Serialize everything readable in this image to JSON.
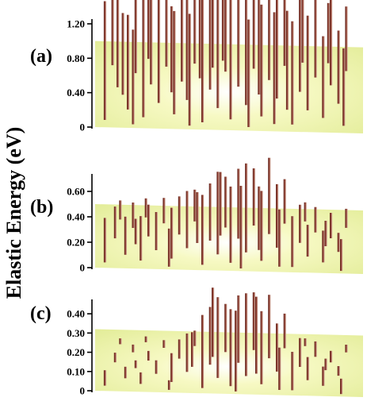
{
  "chart_data": {
    "type": "bar",
    "ylabel": "Elastic Energy (eV)",
    "colors": {
      "plane_light": "#fbfcc8",
      "plane_dark": "#e6ef9c",
      "spike_dark": "#7a2a22",
      "spike_light": "#c9a89a",
      "axis": "#000000"
    },
    "panels": [
      {
        "label": "(a)",
        "ylim": [
          0,
          1.2
        ],
        "yticks": [
          "1.20",
          "0.80",
          "0.40",
          "0"
        ],
        "ytick_values": [
          1.2,
          0.8,
          0.4,
          0
        ],
        "plane_level": 1.0,
        "spikes": [
          {
            "i": 0.02,
            "j": 0.1,
            "v": 1.38
          },
          {
            "i": 0.07,
            "j": 0.55,
            "v": 1.3
          },
          {
            "i": 0.11,
            "j": 0.25,
            "v": 1.1
          },
          {
            "i": 0.14,
            "j": 0.75,
            "v": 1.15
          },
          {
            "i": 0.17,
            "j": 0.15,
            "v": 1.4
          },
          {
            "i": 0.2,
            "j": 0.6,
            "v": 1.25
          },
          {
            "i": 0.23,
            "j": 0.35,
            "v": 1.45
          },
          {
            "i": 0.26,
            "j": 0.85,
            "v": 1.05
          },
          {
            "i": 0.29,
            "j": 0.2,
            "v": 1.2
          },
          {
            "i": 0.32,
            "j": 0.65,
            "v": 1.3
          },
          {
            "i": 0.34,
            "j": 0.4,
            "v": 1.5
          },
          {
            "i": 0.37,
            "j": 0.9,
            "v": 1.1
          },
          {
            "i": 0.4,
            "j": 0.1,
            "v": 1.6
          },
          {
            "i": 0.43,
            "j": 0.55,
            "v": 1.4
          },
          {
            "i": 0.46,
            "j": 0.3,
            "v": 1.7
          },
          {
            "i": 0.49,
            "j": 0.8,
            "v": 1.55
          },
          {
            "i": 0.51,
            "j": 0.15,
            "v": 1.85
          },
          {
            "i": 0.54,
            "j": 0.6,
            "v": 1.35
          },
          {
            "i": 0.57,
            "j": 0.35,
            "v": 1.5
          },
          {
            "i": 0.6,
            "j": 0.85,
            "v": 1.2
          },
          {
            "i": 0.63,
            "j": 0.2,
            "v": 1.3
          },
          {
            "i": 0.66,
            "j": 0.7,
            "v": 1.45
          },
          {
            "i": 0.69,
            "j": 0.45,
            "v": 1.25
          },
          {
            "i": 0.72,
            "j": 0.9,
            "v": 1.15
          },
          {
            "i": 0.75,
            "j": 0.1,
            "v": 1.2
          },
          {
            "i": 0.78,
            "j": 0.55,
            "v": 1.35
          },
          {
            "i": 0.81,
            "j": 0.3,
            "v": 1.1
          },
          {
            "i": 0.84,
            "j": 0.75,
            "v": 1.0
          },
          {
            "i": 0.87,
            "j": 0.2,
            "v": 0.95
          },
          {
            "i": 0.9,
            "j": 0.65,
            "v": 1.05
          },
          {
            "i": 0.93,
            "j": 0.4,
            "v": 0.85
          },
          {
            "i": 0.96,
            "j": 0.85,
            "v": 0.75
          },
          {
            "i": 0.05,
            "j": 0.85,
            "v": 0.9
          },
          {
            "i": 0.09,
            "j": 0.45,
            "v": 0.95
          },
          {
            "i": 0.19,
            "j": 0.95,
            "v": 0.8
          },
          {
            "i": 0.28,
            "j": 0.5,
            "v": 1.0
          },
          {
            "i": 0.39,
            "j": 0.7,
            "v": 0.95
          },
          {
            "i": 0.48,
            "j": 0.95,
            "v": 1.1
          },
          {
            "i": 0.58,
            "j": 0.05,
            "v": 1.25
          },
          {
            "i": 0.68,
            "j": 0.1,
            "v": 1.3
          },
          {
            "i": 0.79,
            "j": 0.95,
            "v": 0.85
          },
          {
            "i": 0.89,
            "j": 0.95,
            "v": 0.7
          },
          {
            "i": 0.95,
            "j": 0.1,
            "v": 0.9
          },
          {
            "i": 0.13,
            "j": 0.05,
            "v": 1.1
          },
          {
            "i": 0.35,
            "j": 0.05,
            "v": 1.3
          },
          {
            "i": 0.44,
            "j": 0.85,
            "v": 1.2
          },
          {
            "i": 0.62,
            "j": 0.5,
            "v": 1.4
          },
          {
            "i": 0.73,
            "j": 0.3,
            "v": 1.15
          }
        ]
      },
      {
        "label": "(b)",
        "ylim": [
          0,
          0.7
        ],
        "yticks": [
          "0.60",
          "0.40",
          "0.20",
          "0"
        ],
        "ytick_values": [
          0.6,
          0.4,
          0.2,
          0
        ],
        "plane_level": 0.5,
        "spikes": [
          {
            "i": 0.02,
            "j": 0.1,
            "v": 0.35
          },
          {
            "i": 0.06,
            "j": 0.55,
            "v": 0.25
          },
          {
            "i": 0.1,
            "j": 0.25,
            "v": 0.3
          },
          {
            "i": 0.13,
            "j": 0.75,
            "v": 0.2
          },
          {
            "i": 0.16,
            "j": 0.15,
            "v": 0.35
          },
          {
            "i": 0.19,
            "j": 0.6,
            "v": 0.25
          },
          {
            "i": 0.22,
            "j": 0.35,
            "v": 0.3
          },
          {
            "i": 0.25,
            "j": 0.85,
            "v": 0.2
          },
          {
            "i": 0.28,
            "j": 0.2,
            "v": 0.4
          },
          {
            "i": 0.31,
            "j": 0.65,
            "v": 0.3
          },
          {
            "i": 0.34,
            "j": 0.4,
            "v": 0.45
          },
          {
            "i": 0.37,
            "j": 0.9,
            "v": 0.25
          },
          {
            "i": 0.4,
            "j": 0.1,
            "v": 0.55
          },
          {
            "i": 0.43,
            "j": 0.55,
            "v": 0.45
          },
          {
            "i": 0.46,
            "j": 0.3,
            "v": 0.65
          },
          {
            "i": 0.49,
            "j": 0.8,
            "v": 0.4
          },
          {
            "i": 0.51,
            "j": 0.15,
            "v": 0.6
          },
          {
            "i": 0.54,
            "j": 0.6,
            "v": 0.55
          },
          {
            "i": 0.57,
            "j": 0.35,
            "v": 0.7
          },
          {
            "i": 0.6,
            "j": 0.85,
            "v": 0.45
          },
          {
            "i": 0.63,
            "j": 0.2,
            "v": 0.55
          },
          {
            "i": 0.66,
            "j": 0.7,
            "v": 0.6
          },
          {
            "i": 0.69,
            "j": 0.45,
            "v": 0.5
          },
          {
            "i": 0.72,
            "j": 0.9,
            "v": 0.35
          },
          {
            "i": 0.75,
            "j": 0.1,
            "v": 0.4
          },
          {
            "i": 0.78,
            "j": 0.55,
            "v": 0.3
          },
          {
            "i": 0.81,
            "j": 0.3,
            "v": 0.25
          },
          {
            "i": 0.84,
            "j": 0.75,
            "v": 0.2
          },
          {
            "i": 0.87,
            "j": 0.2,
            "v": 0.25
          },
          {
            "i": 0.9,
            "j": 0.65,
            "v": 0.2
          },
          {
            "i": 0.93,
            "j": 0.4,
            "v": 0.15
          },
          {
            "i": 0.96,
            "j": 0.85,
            "v": 0.15
          },
          {
            "i": 0.08,
            "j": 0.9,
            "v": 0.15
          },
          {
            "i": 0.18,
            "j": 0.95,
            "v": 0.15
          },
          {
            "i": 0.27,
            "j": 0.05,
            "v": 0.3
          },
          {
            "i": 0.38,
            "j": 0.5,
            "v": 0.4
          },
          {
            "i": 0.47,
            "j": 0.65,
            "v": 0.5
          },
          {
            "i": 0.55,
            "j": 0.05,
            "v": 0.65
          },
          {
            "i": 0.62,
            "j": 0.4,
            "v": 0.5
          },
          {
            "i": 0.7,
            "j": 0.1,
            "v": 0.45
          },
          {
            "i": 0.8,
            "j": 0.95,
            "v": 0.15
          },
          {
            "i": 0.88,
            "j": 0.5,
            "v": 0.2
          },
          {
            "i": 0.94,
            "j": 0.05,
            "v": 0.25
          },
          {
            "i": 0.14,
            "j": 0.45,
            "v": 0.2
          }
        ]
      },
      {
        "label": "(c)",
        "ylim": [
          0,
          0.45
        ],
        "yticks": [
          "0.40",
          "0.30",
          "0.20",
          "0.10",
          "0"
        ],
        "ytick_values": [
          0.4,
          0.3,
          0.2,
          0.1,
          0
        ],
        "plane_level": 0.32,
        "spikes": [
          {
            "i": 0.02,
            "j": 0.1,
            "v": 0.08
          },
          {
            "i": 0.06,
            "j": 0.55,
            "v": 0.05
          },
          {
            "i": 0.1,
            "j": 0.25,
            "v": 0.06
          },
          {
            "i": 0.13,
            "j": 0.75,
            "v": 0.04
          },
          {
            "i": 0.16,
            "j": 0.15,
            "v": 0.06
          },
          {
            "i": 0.19,
            "j": 0.6,
            "v": 0.05
          },
          {
            "i": 0.22,
            "j": 0.35,
            "v": 0.07
          },
          {
            "i": 0.25,
            "j": 0.85,
            "v": 0.04
          },
          {
            "i": 0.28,
            "j": 0.2,
            "v": 0.15
          },
          {
            "i": 0.31,
            "j": 0.65,
            "v": 0.1
          },
          {
            "i": 0.34,
            "j": 0.4,
            "v": 0.2
          },
          {
            "i": 0.37,
            "j": 0.9,
            "v": 0.08
          },
          {
            "i": 0.4,
            "j": 0.1,
            "v": 0.38
          },
          {
            "i": 0.43,
            "j": 0.55,
            "v": 0.3
          },
          {
            "i": 0.46,
            "j": 0.3,
            "v": 0.42
          },
          {
            "i": 0.49,
            "j": 0.8,
            "v": 0.25
          },
          {
            "i": 0.51,
            "j": 0.15,
            "v": 0.4
          },
          {
            "i": 0.54,
            "j": 0.6,
            "v": 0.35
          },
          {
            "i": 0.57,
            "j": 0.35,
            "v": 0.43
          },
          {
            "i": 0.6,
            "j": 0.85,
            "v": 0.3
          },
          {
            "i": 0.63,
            "j": 0.2,
            "v": 0.38
          },
          {
            "i": 0.66,
            "j": 0.7,
            "v": 0.33
          },
          {
            "i": 0.69,
            "j": 0.45,
            "v": 0.25
          },
          {
            "i": 0.72,
            "j": 0.9,
            "v": 0.18
          },
          {
            "i": 0.75,
            "j": 0.1,
            "v": 0.2
          },
          {
            "i": 0.78,
            "j": 0.55,
            "v": 0.15
          },
          {
            "i": 0.81,
            "j": 0.3,
            "v": 0.12
          },
          {
            "i": 0.84,
            "j": 0.75,
            "v": 0.08
          },
          {
            "i": 0.87,
            "j": 0.2,
            "v": 0.1
          },
          {
            "i": 0.9,
            "j": 0.65,
            "v": 0.06
          },
          {
            "i": 0.93,
            "j": 0.4,
            "v": 0.05
          },
          {
            "i": 0.96,
            "j": 0.85,
            "v": 0.04
          },
          {
            "i": 0.08,
            "j": 0.9,
            "v": 0.03
          },
          {
            "i": 0.18,
            "j": 0.95,
            "v": 0.03
          },
          {
            "i": 0.27,
            "j": 0.05,
            "v": 0.05
          },
          {
            "i": 0.36,
            "j": 0.5,
            "v": 0.18
          },
          {
            "i": 0.44,
            "j": 0.7,
            "v": 0.36
          },
          {
            "i": 0.53,
            "j": 0.05,
            "v": 0.42
          },
          {
            "i": 0.61,
            "j": 0.4,
            "v": 0.4
          },
          {
            "i": 0.7,
            "j": 0.1,
            "v": 0.22
          },
          {
            "i": 0.8,
            "j": 0.95,
            "v": 0.04
          },
          {
            "i": 0.88,
            "j": 0.5,
            "v": 0.06
          },
          {
            "i": 0.94,
            "j": 0.05,
            "v": 0.08
          },
          {
            "i": 0.14,
            "j": 0.45,
            "v": 0.04
          }
        ]
      }
    ]
  }
}
